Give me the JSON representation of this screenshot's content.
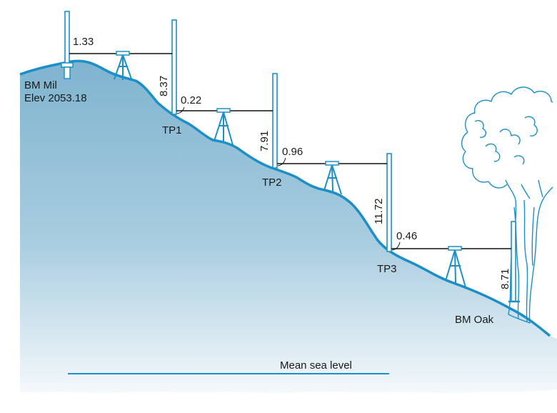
{
  "points": {
    "bm_start": {
      "name": "BM Mil",
      "elev": "Elev 2053.18"
    },
    "tp1": "TP1",
    "tp2": "TP2",
    "tp3": "TP3",
    "bm_end": "BM Oak"
  },
  "readings": {
    "bs1": "1.33",
    "fs1": "8.37",
    "bs2": "0.22",
    "fs2": "7.91",
    "bs3": "0.96",
    "fs3": "11.72",
    "bs4": "0.46",
    "fs4": "8.71"
  },
  "datum": "Mean sea level",
  "colors": {
    "ground": "#1c8fc8",
    "terrain_top": "#7fb4cf",
    "terrain_bottom": "#f4f8fb"
  },
  "icons": [
    "level-instrument-icon",
    "leveling-rod-icon",
    "tree-icon",
    "benchmark-icon"
  ]
}
